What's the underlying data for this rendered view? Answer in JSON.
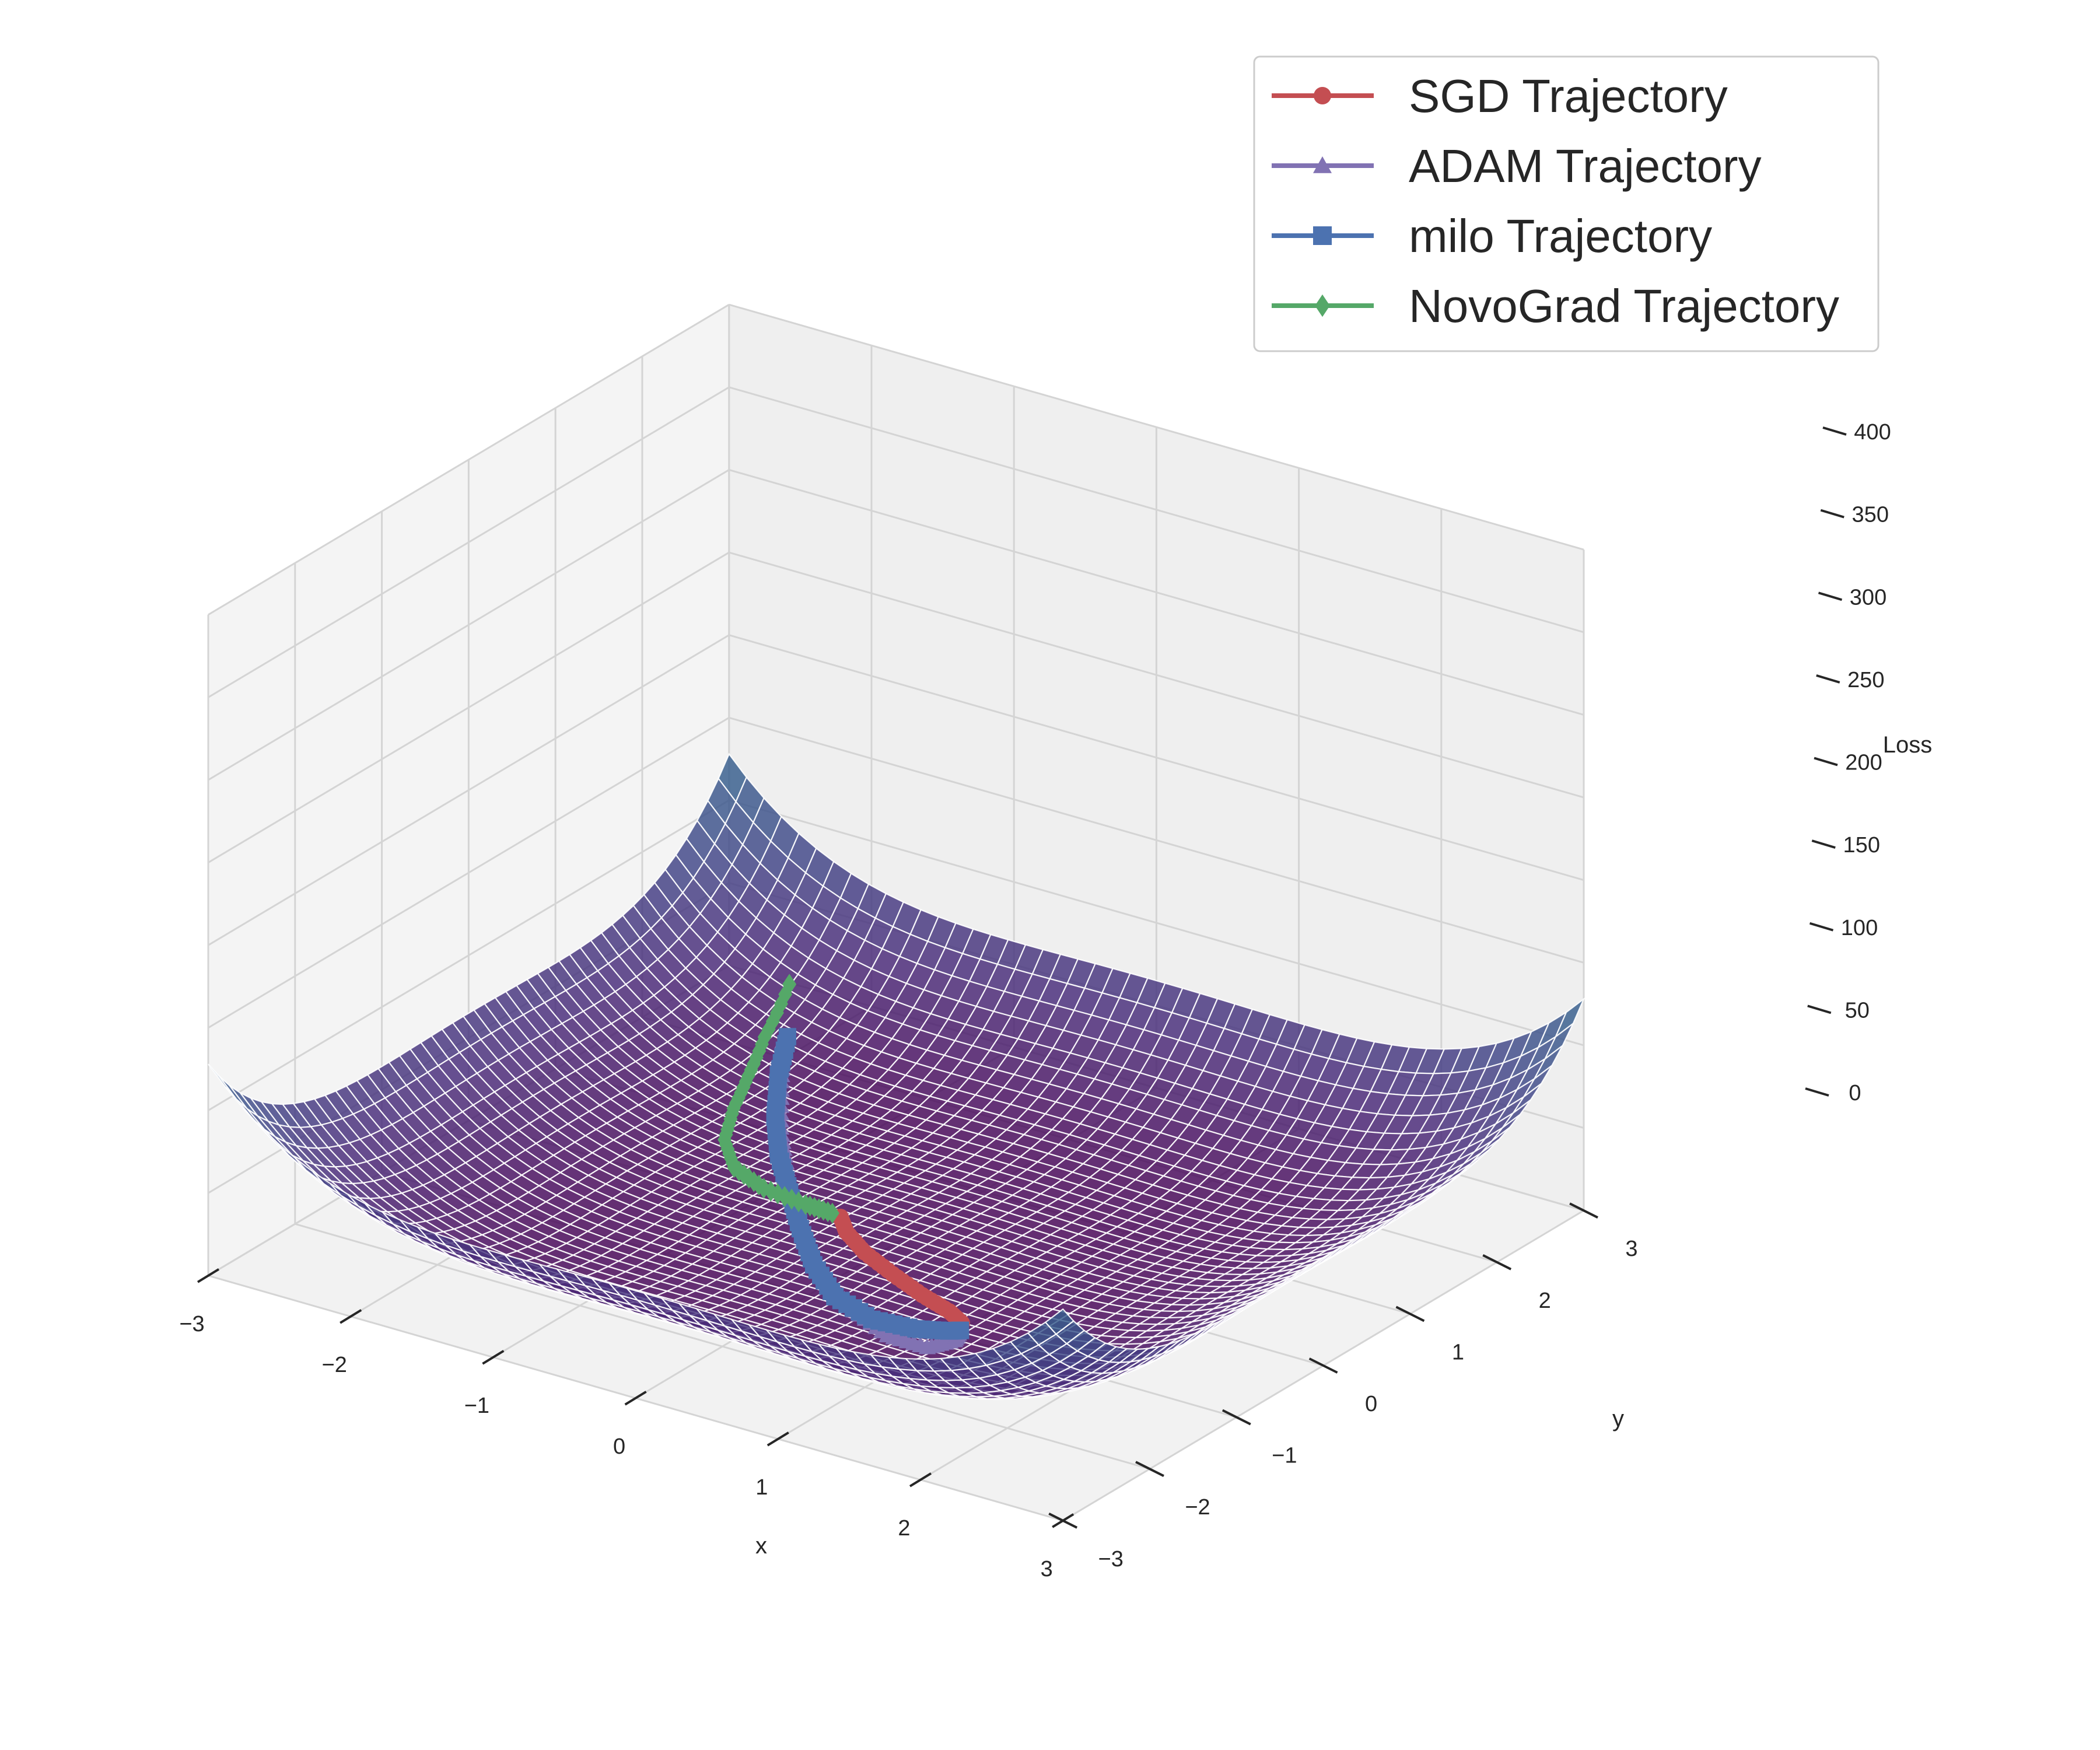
{
  "chart_data": {
    "type": "surface3d",
    "xlabel": "x",
    "ylabel": "y",
    "zlabel": "Loss",
    "xticks": [
      "−3",
      "−2",
      "−1",
      "0",
      "1",
      "2",
      "3"
    ],
    "yticks": [
      "−3",
      "−2",
      "−1",
      "0",
      "1",
      "2",
      "3"
    ],
    "zticks": [
      "0",
      "50",
      "100",
      "150",
      "200",
      "250",
      "300",
      "350",
      "400"
    ],
    "xlim": [
      -3,
      3
    ],
    "ylim": [
      -3,
      3
    ],
    "zlim": [
      0,
      400
    ],
    "surface": {
      "function": "(x^2 - 1)^2 + (y^2 - 1)^2 (approximate double-well loss)",
      "x_range": [
        -3,
        3
      ],
      "y_range": [
        -3,
        3
      ],
      "grid": 50,
      "colormap": "viridis",
      "alpha": 0.7,
      "z_min": 0,
      "z_max": 400
    },
    "series": [
      {
        "name": "SGD Trajectory",
        "color": "#c44e52",
        "marker": "circle",
        "points": [
          [
            -0.45,
            0.1
          ],
          [
            -0.3,
            -0.08
          ],
          [
            -0.05,
            -0.28
          ],
          [
            0.25,
            -0.45
          ],
          [
            0.55,
            -0.6
          ],
          [
            0.8,
            -0.7
          ],
          [
            0.95,
            -0.8
          ]
        ]
      },
      {
        "name": "ADAM Trajectory",
        "color": "#8172b3",
        "marker": "triangle",
        "points": [
          [
            -1.95,
            1.9
          ],
          [
            -1.75,
            1.55
          ],
          [
            -1.45,
            1.05
          ],
          [
            -1.1,
            0.55
          ],
          [
            -0.8,
            0.15
          ],
          [
            -0.45,
            -0.3
          ],
          [
            -0.05,
            -0.75
          ],
          [
            0.35,
            -1.05
          ],
          [
            0.7,
            -1.25
          ],
          [
            0.98,
            -1.25
          ],
          [
            1.05,
            -1.05
          ],
          [
            1.0,
            -0.9
          ]
        ]
      },
      {
        "name": "milo Trajectory",
        "color": "#4c72b0",
        "marker": "square",
        "points": [
          [
            -1.95,
            1.95
          ],
          [
            -1.8,
            1.6
          ],
          [
            -1.55,
            1.15
          ],
          [
            -1.25,
            0.7
          ],
          [
            -0.9,
            0.25
          ],
          [
            -0.55,
            -0.2
          ],
          [
            -0.2,
            -0.62
          ],
          [
            0.15,
            -0.95
          ],
          [
            0.5,
            -1.1
          ],
          [
            0.78,
            -1.05
          ],
          [
            0.95,
            -0.95
          ],
          [
            1.0,
            -0.9
          ]
        ]
      },
      {
        "name": "NovoGrad Trajectory",
        "color": "#55a868",
        "marker": "diamond",
        "points": [
          [
            -2.15,
            2.3
          ],
          [
            -2.05,
            1.85
          ],
          [
            -1.92,
            1.45
          ],
          [
            -1.78,
            1.05
          ],
          [
            -1.6,
            0.65
          ],
          [
            -1.35,
            0.35
          ],
          [
            -1.05,
            0.2
          ],
          [
            -0.72,
            0.14
          ],
          [
            -0.52,
            0.12
          ]
        ]
      }
    ],
    "legend_position": "top-right",
    "grid": true
  }
}
